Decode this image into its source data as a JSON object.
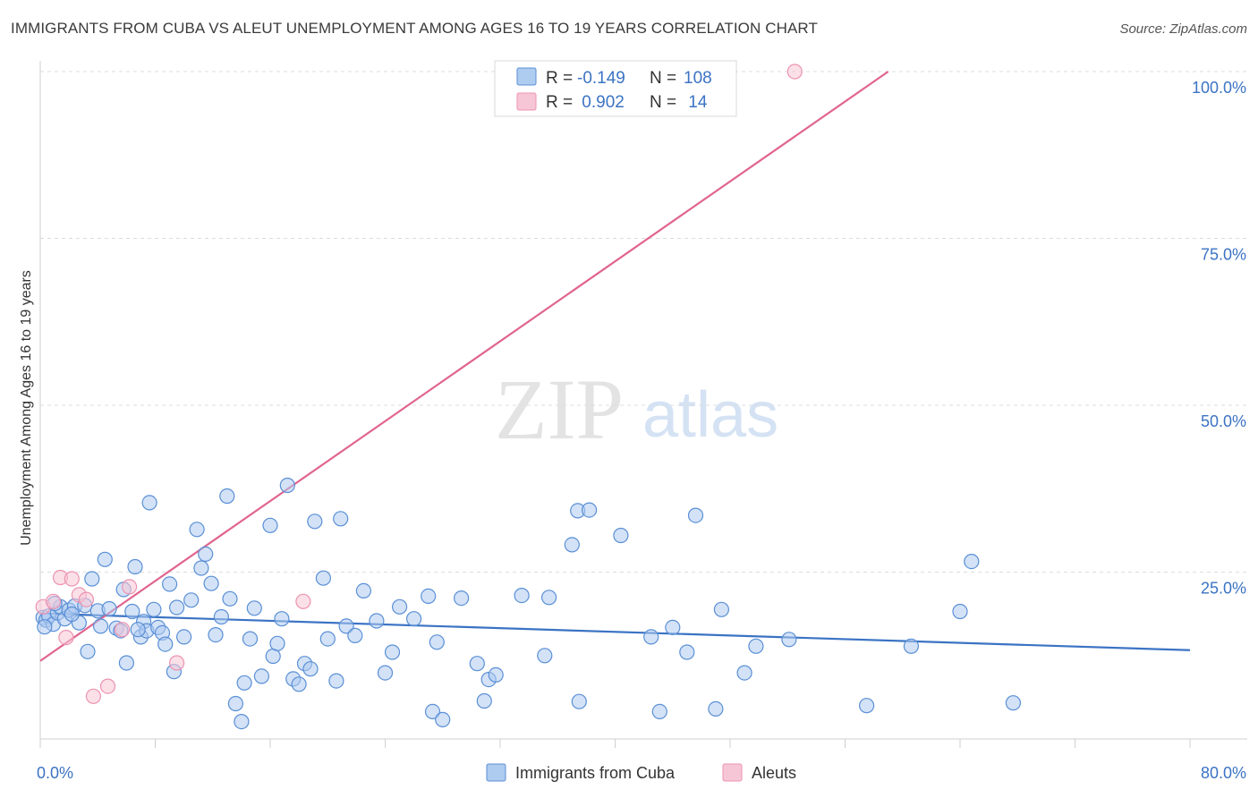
{
  "header": {
    "title": "IMMIGRANTS FROM CUBA VS ALEUT UNEMPLOYMENT AMONG AGES 16 TO 19 YEARS CORRELATION CHART",
    "source": "Source: ZipAtlas.com"
  },
  "watermark": {
    "zip": "ZIP",
    "atlas": "atlas"
  },
  "colors": {
    "blue": "#3b73c4",
    "blue_fill": "#aecbf0",
    "blue_stroke": "#5a8fd6",
    "pink": "#e0648e",
    "pink_fill": "#f7c6d6",
    "pink_stroke": "#ec93b1",
    "grid": "#dcdcdc",
    "axis_text": "#3b73c4"
  },
  "legend": {
    "rows": [
      {
        "r_label": "R = ",
        "r_value": "-0.149",
        "n_label": "N = ",
        "n_value": "108"
      },
      {
        "r_label": "R = ",
        "r_value": " 0.902",
        "n_label": "N = ",
        "n_value": " 14"
      }
    ]
  },
  "chart_data": {
    "type": "scatter",
    "title": "IMMIGRANTS FROM CUBA VS ALEUT UNEMPLOYMENT AMONG AGES 16 TO 19 YEARS CORRELATION CHART",
    "xlabel": "",
    "ylabel": "Unemployment Among Ages 16 to 19 years",
    "xlim": [
      0,
      80
    ],
    "ylim": [
      0,
      100
    ],
    "x_tick_labels": [
      {
        "value": 0,
        "label": "0.0%"
      },
      {
        "value": 80,
        "label": "80.0%"
      }
    ],
    "y_tick_labels": [
      {
        "value": 100,
        "label": "100.0%"
      },
      {
        "value": 75,
        "label": "75.0%"
      },
      {
        "value": 50,
        "label": "50.0%"
      },
      {
        "value": 25,
        "label": "25.0%"
      }
    ],
    "series": [
      {
        "name": "Immigrants from Cuba",
        "color": "#3b73c4",
        "r": -0.149,
        "n": 108,
        "trend": {
          "x": [
            0,
            80
          ],
          "y": [
            18.8,
            13.3
          ]
        },
        "points": [
          [
            0.2,
            18.2
          ],
          [
            0.4,
            17.8
          ],
          [
            0.6,
            18.4
          ],
          [
            0.9,
            17.2
          ],
          [
            1.2,
            18.9
          ],
          [
            1.4,
            19.8
          ],
          [
            1.7,
            18.0
          ],
          [
            2.0,
            19.3
          ],
          [
            2.4,
            19.9
          ],
          [
            2.7,
            17.4
          ],
          [
            3.1,
            20.0
          ],
          [
            3.3,
            13.1
          ],
          [
            3.6,
            24.0
          ],
          [
            4.0,
            19.2
          ],
          [
            4.2,
            16.9
          ],
          [
            4.5,
            26.9
          ],
          [
            4.8,
            19.5
          ],
          [
            5.3,
            16.6
          ],
          [
            5.6,
            16.2
          ],
          [
            5.8,
            22.4
          ],
          [
            6.0,
            11.4
          ],
          [
            6.4,
            19.1
          ],
          [
            6.6,
            25.8
          ],
          [
            7.0,
            15.3
          ],
          [
            7.2,
            17.6
          ],
          [
            7.4,
            16.2
          ],
          [
            7.6,
            35.4
          ],
          [
            7.9,
            19.4
          ],
          [
            8.2,
            16.7
          ],
          [
            8.5,
            15.9
          ],
          [
            8.7,
            14.2
          ],
          [
            9.0,
            23.2
          ],
          [
            9.3,
            10.1
          ],
          [
            9.5,
            19.7
          ],
          [
            10.0,
            15.3
          ],
          [
            10.5,
            20.8
          ],
          [
            10.9,
            31.4
          ],
          [
            11.2,
            25.6
          ],
          [
            11.5,
            27.7
          ],
          [
            11.9,
            23.3
          ],
          [
            12.2,
            15.6
          ],
          [
            12.6,
            18.3
          ],
          [
            13.0,
            36.4
          ],
          [
            13.6,
            5.3
          ],
          [
            14.0,
            2.6
          ],
          [
            14.2,
            8.4
          ],
          [
            14.6,
            15.0
          ],
          [
            14.9,
            19.6
          ],
          [
            15.4,
            9.4
          ],
          [
            16.0,
            32.0
          ],
          [
            16.2,
            12.4
          ],
          [
            16.5,
            14.3
          ],
          [
            16.8,
            18.0
          ],
          [
            17.2,
            38.0
          ],
          [
            17.6,
            9.0
          ],
          [
            18.0,
            8.2
          ],
          [
            18.4,
            11.3
          ],
          [
            18.8,
            10.5
          ],
          [
            19.1,
            32.6
          ],
          [
            19.7,
            24.1
          ],
          [
            20.0,
            15.0
          ],
          [
            20.6,
            8.7
          ],
          [
            20.9,
            33.0
          ],
          [
            21.3,
            16.9
          ],
          [
            21.9,
            15.5
          ],
          [
            22.5,
            22.2
          ],
          [
            23.4,
            17.7
          ],
          [
            24.0,
            9.9
          ],
          [
            24.5,
            13.0
          ],
          [
            25.0,
            19.8
          ],
          [
            26.0,
            18.0
          ],
          [
            27.0,
            21.4
          ],
          [
            27.3,
            4.1
          ],
          [
            27.6,
            14.5
          ],
          [
            28.0,
            2.9
          ],
          [
            29.3,
            21.1
          ],
          [
            30.4,
            11.3
          ],
          [
            30.9,
            5.7
          ],
          [
            31.2,
            8.9
          ],
          [
            31.7,
            9.6
          ],
          [
            33.5,
            21.5
          ],
          [
            35.1,
            12.5
          ],
          [
            35.4,
            21.2
          ],
          [
            37.0,
            29.1
          ],
          [
            37.4,
            34.2
          ],
          [
            37.5,
            5.6
          ],
          [
            38.2,
            34.3
          ],
          [
            40.4,
            30.5
          ],
          [
            42.5,
            15.3
          ],
          [
            43.1,
            4.1
          ],
          [
            44.0,
            16.7
          ],
          [
            45.0,
            13.0
          ],
          [
            45.6,
            33.5
          ],
          [
            47.0,
            4.5
          ],
          [
            47.4,
            19.4
          ],
          [
            49.0,
            9.9
          ],
          [
            49.8,
            13.9
          ],
          [
            52.1,
            14.9
          ],
          [
            57.5,
            5.0
          ],
          [
            60.6,
            13.9
          ],
          [
            64.0,
            19.1
          ],
          [
            64.8,
            26.6
          ],
          [
            67.7,
            5.4
          ],
          [
            0.3,
            16.8
          ],
          [
            1.0,
            20.3
          ],
          [
            2.2,
            18.7
          ],
          [
            6.8,
            16.4
          ],
          [
            13.2,
            21.0
          ]
        ]
      },
      {
        "name": "Aleuts",
        "color": "#e0648e",
        "r": 0.902,
        "n": 14,
        "trend": {
          "x": [
            0,
            59.0
          ],
          "y": [
            11.7,
            100
          ]
        },
        "points": [
          [
            0.2,
            19.8
          ],
          [
            0.9,
            20.6
          ],
          [
            1.4,
            24.2
          ],
          [
            1.8,
            15.2
          ],
          [
            2.2,
            24.0
          ],
          [
            2.7,
            21.6
          ],
          [
            3.2,
            20.9
          ],
          [
            3.7,
            6.4
          ],
          [
            4.7,
            7.9
          ],
          [
            5.7,
            16.4
          ],
          [
            6.2,
            22.8
          ],
          [
            9.5,
            11.4
          ],
          [
            18.3,
            20.6
          ],
          [
            52.5,
            100
          ]
        ]
      }
    ]
  },
  "bottom_legend": {
    "items": [
      {
        "label": "Immigrants from Cuba"
      },
      {
        "label": "Aleuts"
      }
    ]
  }
}
